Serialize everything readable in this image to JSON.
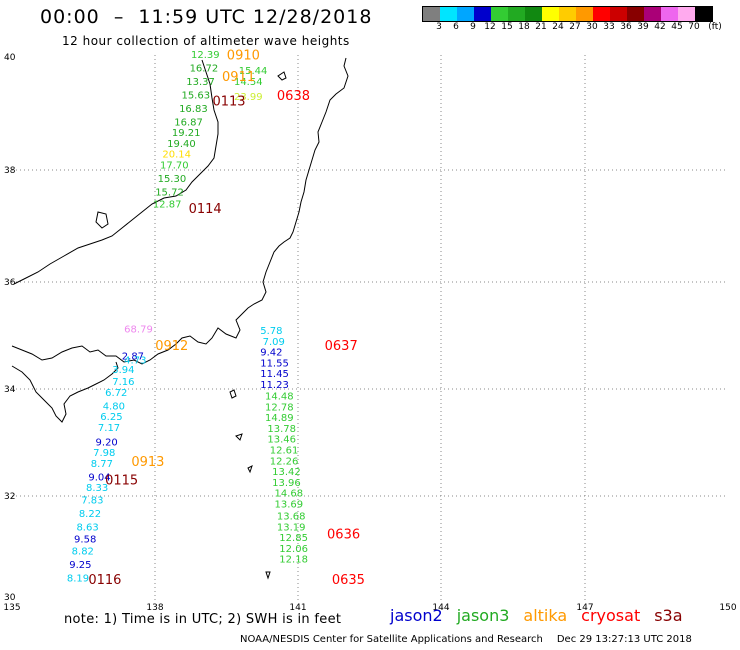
{
  "title": "00:00  –  11:59 UTC 12/28/2018",
  "subtitle": "12 hour collection of altimeter wave heights",
  "colorbar": {
    "colors": [
      "#7f7f7f",
      "#00e5ff",
      "#00a6ff",
      "#0000cc",
      "#33cc33",
      "#22aa22",
      "#118811",
      "#ffff00",
      "#ffcc00",
      "#ff9900",
      "#ff0000",
      "#cc0000",
      "#880000",
      "#aa0077",
      "#ee66ee",
      "#ffaaee",
      "#000000"
    ],
    "labels": [
      "3",
      "6",
      "9",
      "12",
      "15",
      "18",
      "21",
      "24",
      "27",
      "30",
      "33",
      "36",
      "39",
      "42",
      "45",
      "70",
      "(ft)"
    ]
  },
  "axes": {
    "lat_ticks": [
      "40",
      "38",
      "36",
      "34",
      "32",
      "30"
    ],
    "lon_ticks": [
      "135",
      "138",
      "141",
      "144",
      "147",
      "150"
    ]
  },
  "satellites": {
    "jason2": {
      "name": "jason2",
      "color": "#0000cc"
    },
    "jason3": {
      "name": "jason3",
      "color": "#22aa22"
    },
    "altika": {
      "name": "altika",
      "color": "#ff9900"
    },
    "cryosat": {
      "name": "cryosat",
      "color": "#ff0000"
    },
    "s3a": {
      "name": "s3a",
      "color": "#880000"
    }
  },
  "pass_labels": [
    {
      "text": "0910",
      "lon": 139.5,
      "lat": 39.95,
      "color": "#ff9900"
    },
    {
      "text": "0911",
      "lon": 139.4,
      "lat": 39.55,
      "color": "#ff9900"
    },
    {
      "text": "0113",
      "lon": 139.2,
      "lat": 39.1,
      "color": "#880000"
    },
    {
      "text": "0638",
      "lon": 140.55,
      "lat": 39.2,
      "color": "#ff0000"
    },
    {
      "text": "0114",
      "lon": 138.7,
      "lat": 37.1,
      "color": "#880000"
    },
    {
      "text": "0637",
      "lon": 141.55,
      "lat": 34.55,
      "color": "#ff0000"
    },
    {
      "text": "0912",
      "lon": 138.0,
      "lat": 34.55,
      "color": "#ff9900"
    },
    {
      "text": "0913",
      "lon": 137.5,
      "lat": 32.4,
      "color": "#ff9900"
    },
    {
      "text": "0115",
      "lon": 136.95,
      "lat": 32.05,
      "color": "#880000"
    },
    {
      "text": "0636",
      "lon": 141.6,
      "lat": 31.05,
      "color": "#ff0000"
    },
    {
      "text": "0635",
      "lon": 141.7,
      "lat": 30.2,
      "color": "#ff0000"
    },
    {
      "text": "0116",
      "lon": 136.6,
      "lat": 30.2,
      "color": "#880000"
    }
  ],
  "wave_labels": [
    {
      "text": "12.39",
      "lon": 138.75,
      "lat": 39.98,
      "color": "#33cc33"
    },
    {
      "text": "16.72",
      "lon": 138.72,
      "lat": 39.73,
      "color": "#22aa22"
    },
    {
      "text": "15.44",
      "lon": 139.75,
      "lat": 39.68,
      "color": "#33cc33"
    },
    {
      "text": "13.37",
      "lon": 138.65,
      "lat": 39.48,
      "color": "#22aa22"
    },
    {
      "text": "14.54",
      "lon": 139.65,
      "lat": 39.48,
      "color": "#33cc33"
    },
    {
      "text": "15.63",
      "lon": 138.55,
      "lat": 39.23,
      "color": "#22aa22"
    },
    {
      "text": "23.99",
      "lon": 139.65,
      "lat": 39.2,
      "color": "#ccee33"
    },
    {
      "text": "16.83",
      "lon": 138.5,
      "lat": 38.98,
      "color": "#22aa22"
    },
    {
      "text": "16.87",
      "lon": 138.4,
      "lat": 38.73,
      "color": "#22aa22"
    },
    {
      "text": "19.21",
      "lon": 138.35,
      "lat": 38.53,
      "color": "#22aa22"
    },
    {
      "text": "19.40",
      "lon": 138.25,
      "lat": 38.33,
      "color": "#22aa22"
    },
    {
      "text": "20.14",
      "lon": 138.15,
      "lat": 38.13,
      "color": "#ffdd00"
    },
    {
      "text": "17.70",
      "lon": 138.1,
      "lat": 37.93,
      "color": "#33cc33"
    },
    {
      "text": "15.30",
      "lon": 138.05,
      "lat": 37.68,
      "color": "#22aa22"
    },
    {
      "text": "15.72",
      "lon": 138.0,
      "lat": 37.43,
      "color": "#22aa22"
    },
    {
      "text": "12.87",
      "lon": 137.95,
      "lat": 37.2,
      "color": "#33cc33"
    },
    {
      "text": "5.78",
      "lon": 140.2,
      "lat": 34.85,
      "color": "#00ccee"
    },
    {
      "text": "7.09",
      "lon": 140.25,
      "lat": 34.65,
      "color": "#00ccee"
    },
    {
      "text": "9.42",
      "lon": 140.2,
      "lat": 34.45,
      "color": "#0000cc"
    },
    {
      "text": "11.55",
      "lon": 140.2,
      "lat": 34.25,
      "color": "#0000cc"
    },
    {
      "text": "11.45",
      "lon": 140.2,
      "lat": 34.05,
      "color": "#0000cc"
    },
    {
      "text": "11.23",
      "lon": 140.2,
      "lat": 33.85,
      "color": "#0000cc"
    },
    {
      "text": "14.48",
      "lon": 140.3,
      "lat": 33.63,
      "color": "#33cc33"
    },
    {
      "text": "12.78",
      "lon": 140.3,
      "lat": 33.43,
      "color": "#33cc33"
    },
    {
      "text": "14.89",
      "lon": 140.3,
      "lat": 33.23,
      "color": "#33cc33"
    },
    {
      "text": "13.78",
      "lon": 140.35,
      "lat": 33.03,
      "color": "#33cc33"
    },
    {
      "text": "13.46",
      "lon": 140.35,
      "lat": 32.83,
      "color": "#33cc33"
    },
    {
      "text": "12.61",
      "lon": 140.4,
      "lat": 32.63,
      "color": "#33cc33"
    },
    {
      "text": "12.26",
      "lon": 140.4,
      "lat": 32.43,
      "color": "#33cc33"
    },
    {
      "text": "13.42",
      "lon": 140.45,
      "lat": 32.23,
      "color": "#33cc33"
    },
    {
      "text": "13.96",
      "lon": 140.45,
      "lat": 32.03,
      "color": "#33cc33"
    },
    {
      "text": "14.68",
      "lon": 140.5,
      "lat": 31.83,
      "color": "#33cc33"
    },
    {
      "text": "13.69",
      "lon": 140.5,
      "lat": 31.63,
      "color": "#33cc33"
    },
    {
      "text": "13.68",
      "lon": 140.55,
      "lat": 31.4,
      "color": "#33cc33"
    },
    {
      "text": "13.19",
      "lon": 140.55,
      "lat": 31.2,
      "color": "#33cc33"
    },
    {
      "text": "12.85",
      "lon": 140.6,
      "lat": 31.0,
      "color": "#33cc33"
    },
    {
      "text": "12.06",
      "lon": 140.6,
      "lat": 30.8,
      "color": "#33cc33"
    },
    {
      "text": "12.18",
      "lon": 140.6,
      "lat": 30.6,
      "color": "#33cc33"
    },
    {
      "text": "68.79",
      "lon": 137.35,
      "lat": 34.88,
      "color": "#ee88ee"
    },
    {
      "text": "2.87",
      "lon": 137.3,
      "lat": 34.38,
      "color": "#0000cc"
    },
    {
      "text": "4.73",
      "lon": 137.35,
      "lat": 34.3,
      "color": "#00ccee"
    },
    {
      "text": "3.94",
      "lon": 137.1,
      "lat": 34.13,
      "color": "#00ccee"
    },
    {
      "text": "7.16",
      "lon": 137.1,
      "lat": 33.9,
      "color": "#00ccee"
    },
    {
      "text": "6.72",
      "lon": 136.95,
      "lat": 33.7,
      "color": "#00ccee"
    },
    {
      "text": "4.80",
      "lon": 136.9,
      "lat": 33.45,
      "color": "#00ccee"
    },
    {
      "text": "6.25",
      "lon": 136.85,
      "lat": 33.25,
      "color": "#00ccee"
    },
    {
      "text": "7.17",
      "lon": 136.8,
      "lat": 33.05,
      "color": "#00ccee"
    },
    {
      "text": "9.20",
      "lon": 136.75,
      "lat": 32.78,
      "color": "#0000cc"
    },
    {
      "text": "7.98",
      "lon": 136.7,
      "lat": 32.58,
      "color": "#00ccee"
    },
    {
      "text": "8.77",
      "lon": 136.65,
      "lat": 32.38,
      "color": "#00ccee"
    },
    {
      "text": "9.04",
      "lon": 136.6,
      "lat": 32.13,
      "color": "#0000cc"
    },
    {
      "text": "8.33",
      "lon": 136.55,
      "lat": 31.93,
      "color": "#00ccee"
    },
    {
      "text": "7.83",
      "lon": 136.45,
      "lat": 31.7,
      "color": "#00ccee"
    },
    {
      "text": "8.22",
      "lon": 136.4,
      "lat": 31.45,
      "color": "#00ccee"
    },
    {
      "text": "8.63",
      "lon": 136.35,
      "lat": 31.2,
      "color": "#00ccee"
    },
    {
      "text": "9.58",
      "lon": 136.3,
      "lat": 30.98,
      "color": "#0000cc"
    },
    {
      "text": "8.82",
      "lon": 136.25,
      "lat": 30.75,
      "color": "#00ccee"
    },
    {
      "text": "9.25",
      "lon": 136.2,
      "lat": 30.5,
      "color": "#0000cc"
    },
    {
      "text": "8.19",
      "lon": 136.15,
      "lat": 30.25,
      "color": "#00ccee"
    }
  ],
  "note": "note:  1) Time is in UTC; 2) SWH is in feet",
  "credit": "NOAA/NESDIS Center for Satellite Applications and Research",
  "timestamp": "Dec 29 13:27:13 UTC 2018"
}
